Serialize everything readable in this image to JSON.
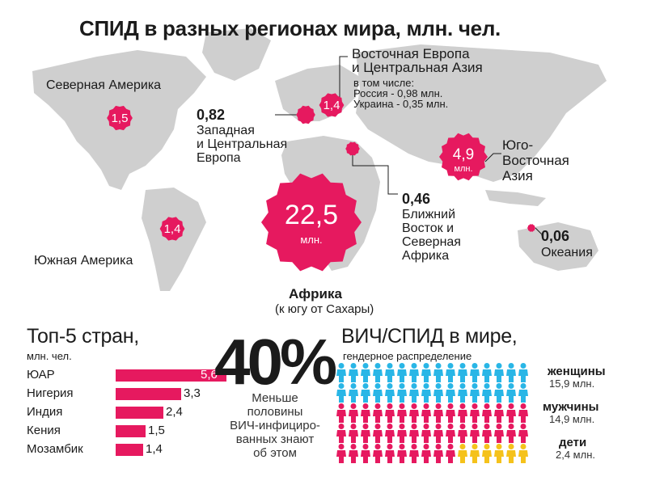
{
  "title": "СПИД в разных регионах мира, млн. чел.",
  "colors": {
    "accent": "#e6195f",
    "map": "#cfcfcf",
    "cyan": "#29b6e6",
    "yellow": "#f5c21b"
  },
  "chart_data": [
    {
      "type": "bubble-map",
      "title": "СПИД в разных регионах мира, млн. чел.",
      "regions": [
        {
          "id": "north-america",
          "name": "Северная Америка",
          "value": 1.5,
          "value_label": "1,5",
          "unit": ""
        },
        {
          "id": "south-america",
          "name": "Южная Америка",
          "value": 1.4,
          "value_label": "1,4",
          "unit": ""
        },
        {
          "id": "western-europe",
          "name": "Западная\nи Центральная\nЕвропа",
          "value": 0.82,
          "value_label": "0,82",
          "unit": ""
        },
        {
          "id": "eastern-europe",
          "name": "Восточная Европа\nи Центральная Азия",
          "value": 1.4,
          "value_label": "1,4",
          "unit": "",
          "note_head": "в том числе:",
          "note": "Россия - 0,98 млн.\nУкраина - 0,35 млн."
        },
        {
          "id": "middle-east",
          "name": "Ближний\nВосток и\nСеверная\nАфрика",
          "value": 0.46,
          "value_label": "0,46",
          "unit": ""
        },
        {
          "id": "southeast-asia",
          "name": "Юго-\nВосточная\nАзия",
          "value": 4.9,
          "value_label": "4,9",
          "unit": "млн."
        },
        {
          "id": "africa",
          "name": "Африка",
          "sub": "(к югу от Сахары)",
          "value": 22.5,
          "value_label": "22,5",
          "unit": "млн."
        },
        {
          "id": "oceania",
          "name": "Океания",
          "value": 0.06,
          "value_label": "0,06",
          "unit": ""
        }
      ]
    },
    {
      "type": "bar",
      "title": "Топ-5 стран,",
      "subtitle": "млн. чел.",
      "categories": [
        "ЮАР",
        "Нигерия",
        "Индия",
        "Кения",
        "Мозамбик"
      ],
      "values": [
        5.6,
        3.3,
        2.4,
        1.5,
        1.4
      ],
      "value_labels": [
        "5,6",
        "3,3",
        "2,4",
        "1,5",
        "1,4"
      ]
    },
    {
      "type": "pictogram",
      "title": "ВИЧ/СПИД в мире,",
      "subtitle": "гендерное распределение",
      "series": [
        {
          "name": "женщины",
          "value": 15.9,
          "value_label": "15,9 млн.",
          "color": "#29b6e6"
        },
        {
          "name": "мужчины",
          "value": 14.9,
          "value_label": "14,9 млн.",
          "color": "#e6195f"
        },
        {
          "name": "дети",
          "value": 2.4,
          "value_label": "2,4 млн.",
          "color": "#f5c21b"
        }
      ]
    }
  ],
  "stat": {
    "value": "40%",
    "text": "Меньше\nполовины\nВИЧ-инфициро-\nванных знают\nоб этом"
  }
}
